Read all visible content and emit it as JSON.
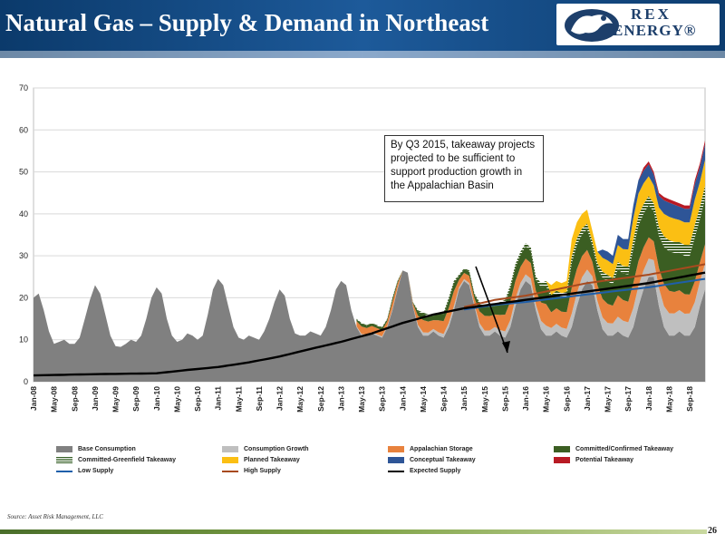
{
  "title": "Natural Gas – Supply & Demand in Northeast",
  "logo": {
    "line1": "REX",
    "line2": "ENERGY®"
  },
  "callout": "By Q3 2015, takeaway projects projected to be sufficient to support production growth in the Appalachian Basin",
  "source": "Source: Asset Risk Management, LLC",
  "page_number": "26",
  "legend": [
    {
      "label": "Base Consumption",
      "color": "#808080",
      "kind": "area"
    },
    {
      "label": "Consumption Growth",
      "color": "#bfbfbf",
      "kind": "area"
    },
    {
      "label": "Appalachian Storage",
      "color": "#e8823d",
      "kind": "area"
    },
    {
      "label": "Committed/Confirmed Takeaway",
      "color": "#3b5e22",
      "kind": "area"
    },
    {
      "label": "Committed-Greenfield Takeaway",
      "color": "#2e5a1e",
      "kind": "striped"
    },
    {
      "label": "Planned Takeaway",
      "color": "#fbbf13",
      "kind": "area"
    },
    {
      "label": "Conceptual Takeaway",
      "color": "#2e5597",
      "kind": "area"
    },
    {
      "label": "Potential Takeaway",
      "color": "#b81a24",
      "kind": "area"
    },
    {
      "label": "Low Supply",
      "color": "#1f5faa",
      "kind": "line"
    },
    {
      "label": "High Supply",
      "color": "#a84a1e",
      "kind": "line"
    },
    {
      "label": "Expected Supply",
      "color": "#000000",
      "kind": "line"
    }
  ],
  "chart_data": {
    "type": "area",
    "ylim": [
      0,
      70
    ],
    "yticks": [
      0,
      10,
      20,
      30,
      40,
      50,
      60,
      70
    ],
    "xlim": [
      "Jan-08",
      "Dec-18"
    ],
    "x_tick_labels": [
      "Jan-08",
      "May-08",
      "Sep-08",
      "Jan-09",
      "May-09",
      "Sep-09",
      "Jan-10",
      "May-10",
      "Sep-10",
      "Jan-11",
      "May-11",
      "Sep-11",
      "Jan-12",
      "May-12",
      "Sep-12",
      "Jan-13",
      "May-13",
      "Sep-13",
      "Jan-14",
      "May-14",
      "Sep-14",
      "Jan-15",
      "May-15",
      "Sep-15",
      "Jan-16",
      "May-16",
      "Sep-16",
      "Jan-17",
      "May-17",
      "Sep-17",
      "Jan-18",
      "May-18",
      "Sep-18"
    ],
    "grid": "horizontal",
    "legend_position": "bottom",
    "annotation": {
      "text_ref": "callout",
      "arrow_to": [
        "Jul-15",
        19
      ]
    },
    "series_points": {
      "base_consumption": [
        [
          0,
          20
        ],
        [
          1,
          21
        ],
        [
          2,
          17
        ],
        [
          3,
          12
        ],
        [
          4,
          9
        ],
        [
          5,
          9.5
        ],
        [
          6,
          10
        ],
        [
          7,
          9
        ],
        [
          8,
          9
        ],
        [
          9,
          10.5
        ],
        [
          10,
          15
        ],
        [
          11,
          19.5
        ],
        [
          12,
          23
        ],
        [
          13,
          21
        ],
        [
          14,
          16
        ],
        [
          15,
          11
        ],
        [
          16,
          8.5
        ],
        [
          17,
          8.3
        ],
        [
          18,
          9
        ],
        [
          19,
          10
        ],
        [
          20,
          9.5
        ],
        [
          21,
          11
        ],
        [
          22,
          15
        ],
        [
          23,
          20
        ],
        [
          24,
          22.5
        ],
        [
          25,
          21
        ],
        [
          26,
          15
        ],
        [
          27,
          11
        ],
        [
          28,
          9.5
        ],
        [
          29,
          10
        ],
        [
          30,
          11.5
        ],
        [
          31,
          11
        ],
        [
          32,
          10
        ],
        [
          33,
          11
        ],
        [
          34,
          16
        ],
        [
          35,
          22
        ],
        [
          36,
          24.5
        ],
        [
          37,
          23
        ],
        [
          38,
          18
        ],
        [
          39,
          13
        ],
        [
          40,
          10.5
        ],
        [
          41,
          10
        ],
        [
          42,
          11
        ],
        [
          43,
          10.5
        ],
        [
          44,
          10
        ],
        [
          45,
          12
        ],
        [
          46,
          15
        ],
        [
          47,
          19
        ],
        [
          48,
          22
        ],
        [
          49,
          20.5
        ],
        [
          50,
          15
        ],
        [
          51,
          11.5
        ],
        [
          52,
          11
        ],
        [
          53,
          11
        ],
        [
          54,
          12
        ],
        [
          55,
          11.5
        ],
        [
          56,
          11
        ],
        [
          57,
          13
        ],
        [
          58,
          17
        ],
        [
          59,
          22
        ],
        [
          60,
          24
        ],
        [
          61,
          23
        ],
        [
          62,
          17
        ],
        [
          63,
          13
        ],
        [
          64,
          11
        ],
        [
          65,
          11
        ],
        [
          66,
          11.5
        ],
        [
          67,
          11
        ],
        [
          68,
          10.5
        ],
        [
          69,
          13
        ],
        [
          70,
          17
        ],
        [
          71,
          22
        ],
        [
          72,
          26.5
        ],
        [
          73,
          26
        ],
        [
          74,
          18
        ],
        [
          75,
          13
        ],
        [
          76,
          11
        ],
        [
          77,
          11
        ],
        [
          78,
          12
        ],
        [
          79,
          11
        ],
        [
          80,
          10.5
        ],
        [
          81,
          13
        ],
        [
          82,
          17
        ],
        [
          83,
          22
        ],
        [
          84,
          24
        ],
        [
          85,
          23
        ],
        [
          86,
          18
        ],
        [
          87,
          13
        ],
        [
          88,
          11
        ],
        [
          89,
          11
        ],
        [
          90,
          12
        ],
        [
          91,
          11
        ],
        [
          92,
          10.5
        ],
        [
          93,
          13
        ],
        [
          94,
          18
        ],
        [
          95,
          22
        ],
        [
          96,
          24
        ],
        [
          97,
          23
        ],
        [
          98,
          17
        ],
        [
          99,
          12.5
        ],
        [
          100,
          11
        ],
        [
          101,
          11
        ],
        [
          102,
          12
        ],
        [
          103,
          11
        ],
        [
          104,
          10.5
        ],
        [
          105,
          13
        ],
        [
          106,
          18
        ],
        [
          107,
          22
        ],
        [
          108,
          24
        ],
        [
          109,
          23
        ],
        [
          110,
          17
        ],
        [
          111,
          12.5
        ],
        [
          112,
          11
        ],
        [
          113,
          11
        ],
        [
          114,
          12
        ],
        [
          115,
          11
        ],
        [
          116,
          10.5
        ],
        [
          117,
          13
        ],
        [
          118,
          18
        ],
        [
          119,
          22
        ],
        [
          120,
          25
        ],
        [
          121,
          25
        ],
        [
          122,
          18
        ],
        [
          123,
          13
        ],
        [
          124,
          11
        ],
        [
          125,
          11
        ],
        [
          126,
          12
        ],
        [
          127,
          11
        ],
        [
          128,
          11
        ],
        [
          129,
          13
        ],
        [
          130,
          18
        ],
        [
          131,
          22
        ]
      ],
      "top_total": [
        [
          63,
          15
        ],
        [
          64,
          14
        ],
        [
          65,
          13.5
        ],
        [
          66,
          14
        ],
        [
          67,
          13.5
        ],
        [
          68,
          13
        ],
        [
          69,
          15
        ],
        [
          70,
          20
        ],
        [
          71,
          24
        ],
        [
          72,
          26.5
        ],
        [
          73,
          26
        ],
        [
          74,
          19
        ],
        [
          75,
          17
        ],
        [
          76,
          16.5
        ],
        [
          77,
          16
        ],
        [
          78,
          16
        ],
        [
          79,
          16.5
        ],
        [
          80,
          16.5
        ],
        [
          81,
          20
        ],
        [
          82,
          24
        ],
        [
          83,
          25.5
        ],
        [
          84,
          27
        ],
        [
          85,
          26.5
        ],
        [
          86,
          21
        ],
        [
          87,
          19
        ],
        [
          88,
          18.5
        ],
        [
          89,
          18.5
        ],
        [
          90,
          18.5
        ],
        [
          91,
          19
        ],
        [
          92,
          19.5
        ],
        [
          93,
          23
        ],
        [
          94,
          28
        ],
        [
          95,
          31
        ],
        [
          96,
          33
        ],
        [
          97,
          32
        ],
        [
          98,
          25
        ],
        [
          99,
          23.5
        ],
        [
          100,
          24
        ],
        [
          101,
          23
        ],
        [
          102,
          24
        ],
        [
          103,
          23.5
        ],
        [
          104,
          24
        ],
        [
          105,
          34
        ],
        [
          106,
          38
        ],
        [
          107,
          40
        ],
        [
          108,
          41
        ],
        [
          109,
          36
        ],
        [
          110,
          31
        ],
        [
          111,
          31.5
        ],
        [
          112,
          31
        ],
        [
          113,
          30
        ],
        [
          114,
          35
        ],
        [
          115,
          34
        ],
        [
          116,
          34
        ],
        [
          117,
          42
        ],
        [
          118,
          48
        ],
        [
          119,
          51
        ],
        [
          120,
          52.5
        ],
        [
          121,
          50
        ],
        [
          122,
          45
        ],
        [
          123,
          44
        ],
        [
          124,
          43.5
        ],
        [
          125,
          43
        ],
        [
          126,
          42.5
        ],
        [
          127,
          42
        ],
        [
          128,
          42
        ],
        [
          129,
          48
        ],
        [
          130,
          52
        ],
        [
          131,
          57.5
        ]
      ],
      "expected_supply": [
        [
          0,
          1.5
        ],
        [
          12,
          1.8
        ],
        [
          24,
          2.0
        ],
        [
          30,
          2.8
        ],
        [
          36,
          3.5
        ],
        [
          42,
          4.6
        ],
        [
          48,
          6.0
        ],
        [
          54,
          7.8
        ],
        [
          60,
          9.5
        ],
        [
          66,
          11.5
        ],
        [
          72,
          14.0
        ],
        [
          78,
          16.0
        ],
        [
          84,
          17.5
        ],
        [
          90,
          18.5
        ],
        [
          96,
          19.5
        ],
        [
          108,
          21.5
        ],
        [
          120,
          23.5
        ],
        [
          131,
          26
        ]
      ],
      "high_supply": [
        [
          84,
          17.8
        ],
        [
          90,
          19.5
        ],
        [
          96,
          20.5
        ],
        [
          108,
          23.5
        ],
        [
          120,
          25.5
        ],
        [
          131,
          28
        ]
      ],
      "low_supply": [
        [
          84,
          17.2
        ],
        [
          90,
          18.3
        ],
        [
          96,
          19.0
        ],
        [
          108,
          20.8
        ],
        [
          120,
          22.5
        ],
        [
          131,
          24.5
        ]
      ]
    }
  }
}
